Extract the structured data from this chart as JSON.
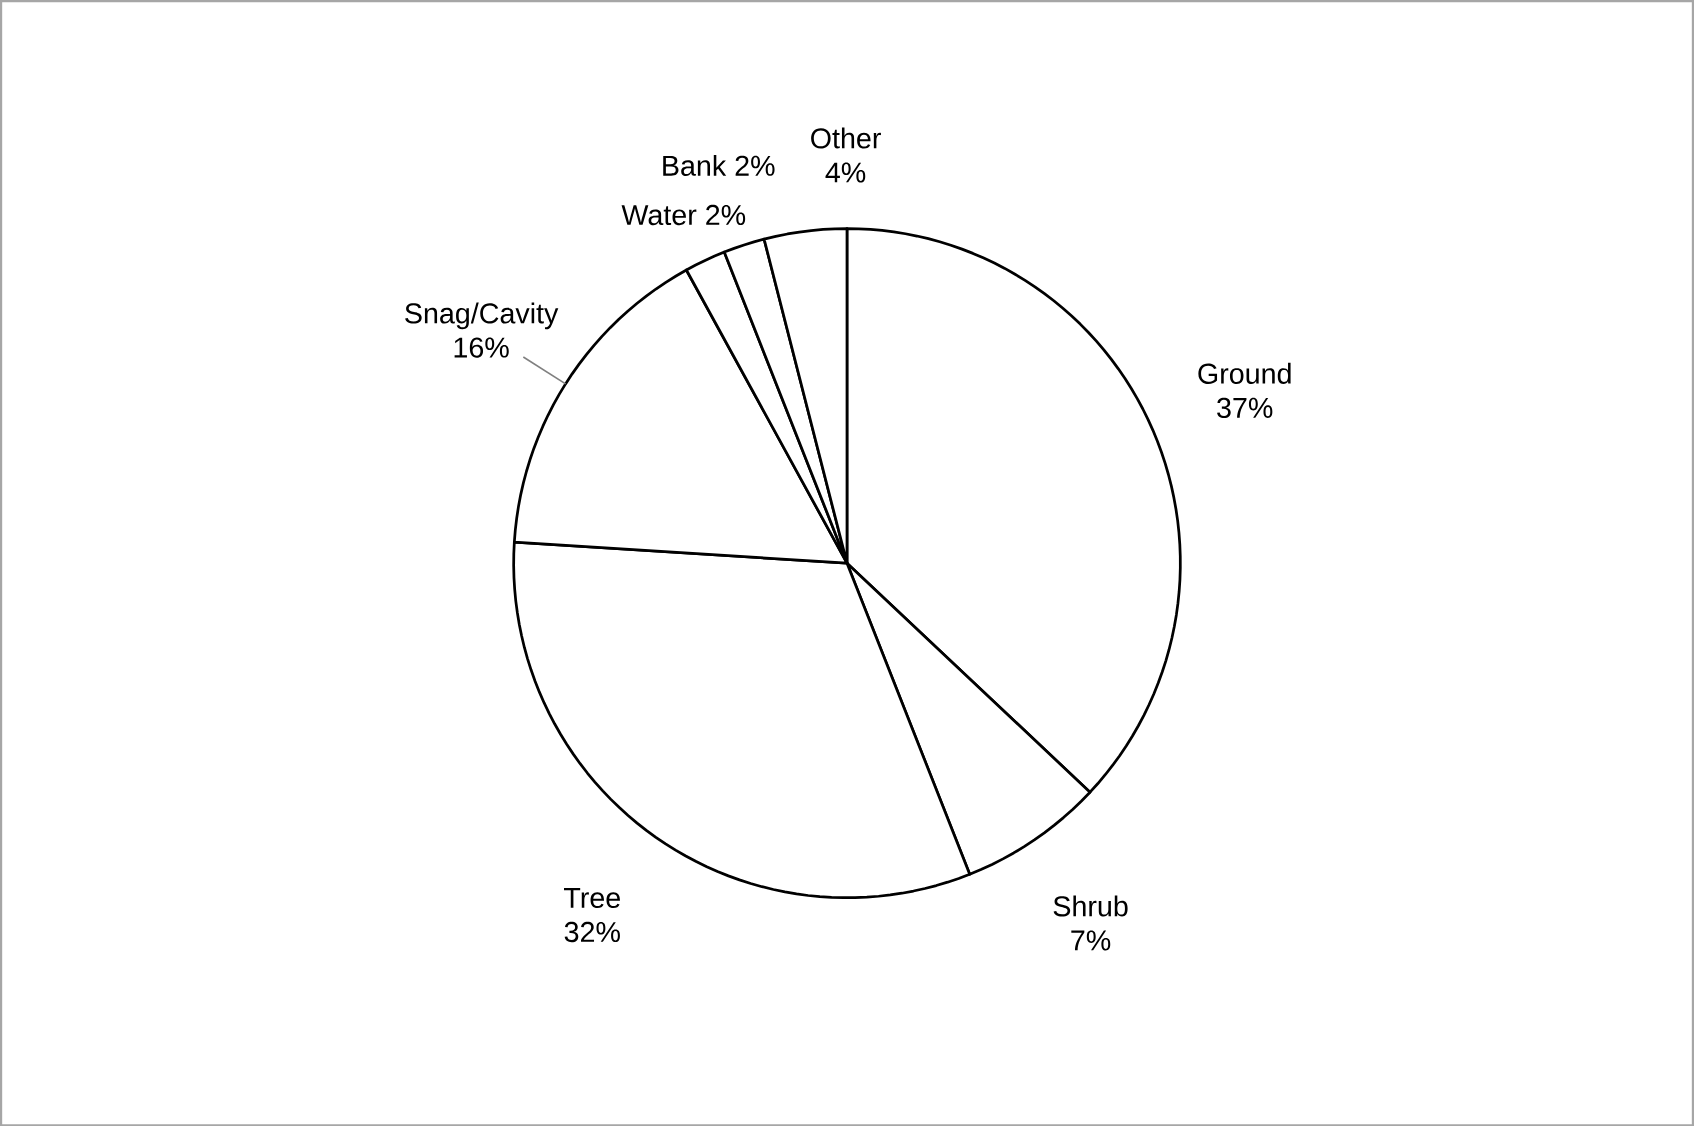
{
  "chart_data": {
    "type": "pie",
    "categories": [
      "Ground",
      "Shrub",
      "Tree",
      "Snag/Cavity",
      "Water",
      "Bank",
      "Other"
    ],
    "values": [
      37,
      7,
      32,
      16,
      2,
      2,
      4
    ],
    "value_labels": [
      "37%",
      "7%",
      "32%",
      "16%",
      "2%",
      "2%",
      "4%"
    ],
    "colors": [
      "#ffffff",
      "#ffffff",
      "#ffffff",
      "#ffffff",
      "#ffffff",
      "#ffffff",
      "#ffffff"
    ]
  }
}
